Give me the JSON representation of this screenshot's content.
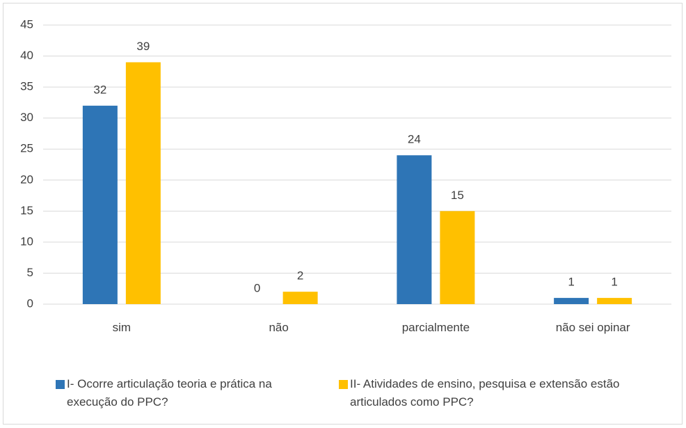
{
  "chart_data": {
    "type": "bar",
    "categories": [
      "sim",
      "não",
      "parcialmente",
      "não sei opinar"
    ],
    "series": [
      {
        "name": "I- Ocorre articulação teoria e prática na execução do PPC?",
        "color": "#2e75b6",
        "values": [
          32,
          0,
          24,
          1
        ]
      },
      {
        "name": "II- Atividades de ensino, pesquisa e extensão estão articulados como PPC?",
        "color": "#ffc000",
        "values": [
          39,
          2,
          15,
          1
        ]
      }
    ],
    "ylim": [
      0,
      45
    ],
    "yticks": [
      0,
      5,
      10,
      15,
      20,
      25,
      30,
      35,
      40,
      45
    ],
    "grid": true,
    "legend": "bottom"
  }
}
